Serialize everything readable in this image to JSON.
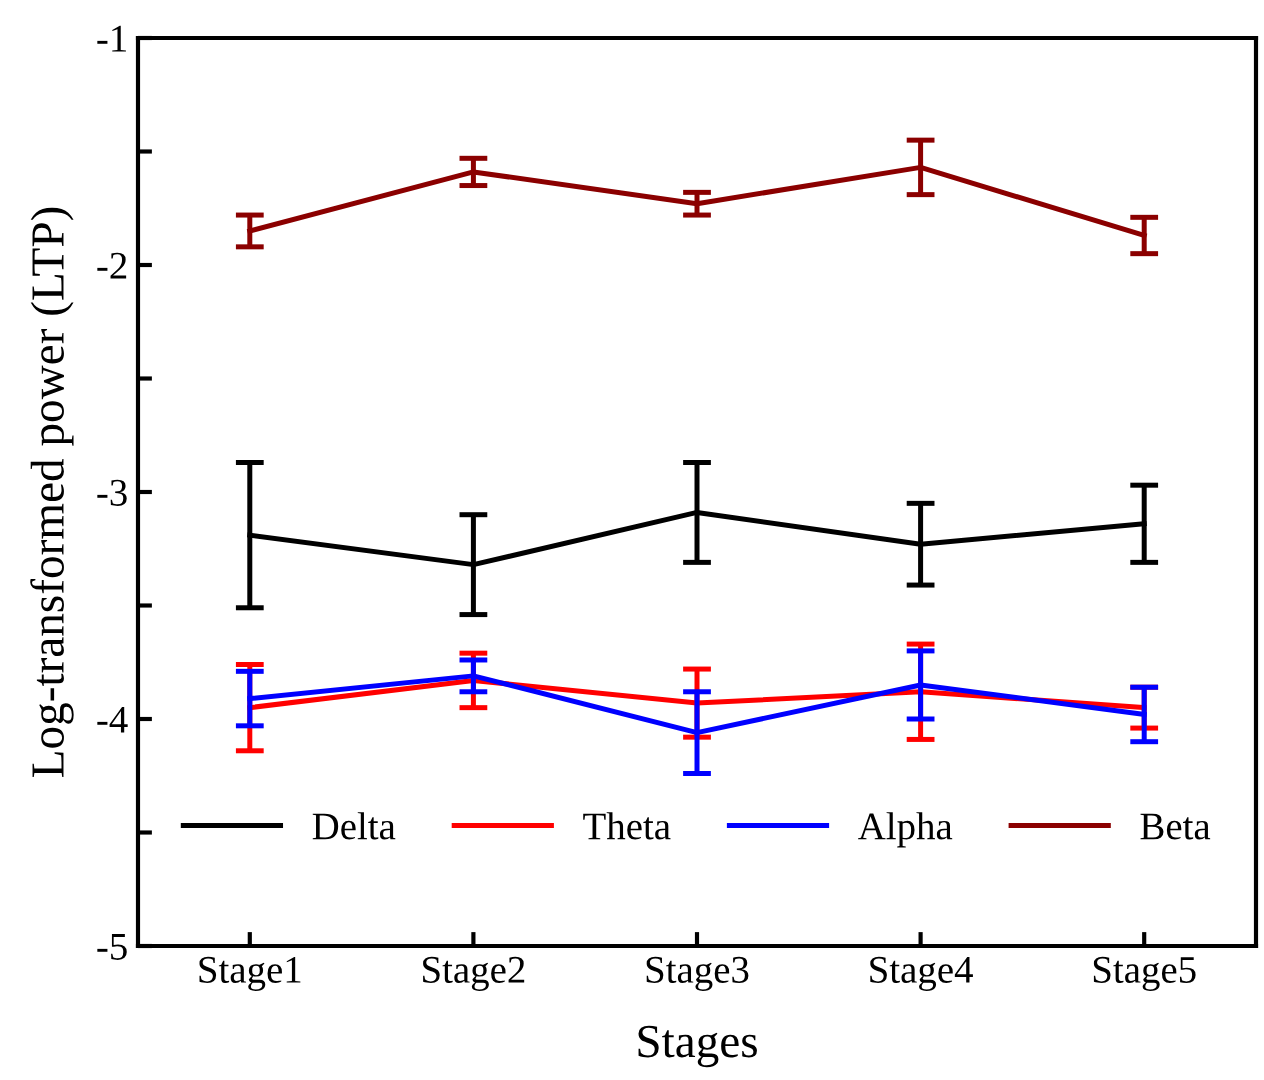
{
  "chart_data": {
    "type": "line",
    "xlabel": "Stages",
    "ylabel": "Log-transformed power (LTP)",
    "categories": [
      "Stage1",
      "Stage2",
      "Stage3",
      "Stage4",
      "Stage5"
    ],
    "series": [
      {
        "name": "Delta",
        "color": "#000000",
        "values": [
          -3.19,
          -3.32,
          -3.09,
          -3.23,
          -3.14
        ],
        "errors": [
          0.32,
          0.22,
          0.22,
          0.18,
          0.17
        ]
      },
      {
        "name": "Theta",
        "color": "#ff0000",
        "values": [
          -3.95,
          -3.83,
          -3.93,
          -3.88,
          -3.95
        ],
        "errors": [
          0.19,
          0.12,
          0.15,
          0.21,
          0.09
        ]
      },
      {
        "name": "Alpha",
        "color": "#0000ff",
        "values": [
          -3.91,
          -3.81,
          -4.06,
          -3.85,
          -3.98
        ],
        "errors": [
          0.12,
          0.07,
          0.18,
          0.15,
          0.12
        ]
      },
      {
        "name": "Beta",
        "color": "#8b0000",
        "values": [
          -1.85,
          -1.59,
          -1.73,
          -1.57,
          -1.87
        ],
        "errors": [
          0.07,
          0.06,
          0.05,
          0.12,
          0.08
        ]
      }
    ],
    "ylim": [
      -5,
      -1
    ],
    "yticks": [
      -5,
      {
        "value": -4.5,
        "label": null
      },
      -4,
      {
        "value": -3.5,
        "label": null
      },
      -3,
      {
        "value": -2.5,
        "label": null
      },
      -2,
      {
        "value": -1.5,
        "label": null
      },
      -1
    ],
    "grid": false,
    "legend": "bottom",
    "marker": "none",
    "line_style": "solid"
  }
}
